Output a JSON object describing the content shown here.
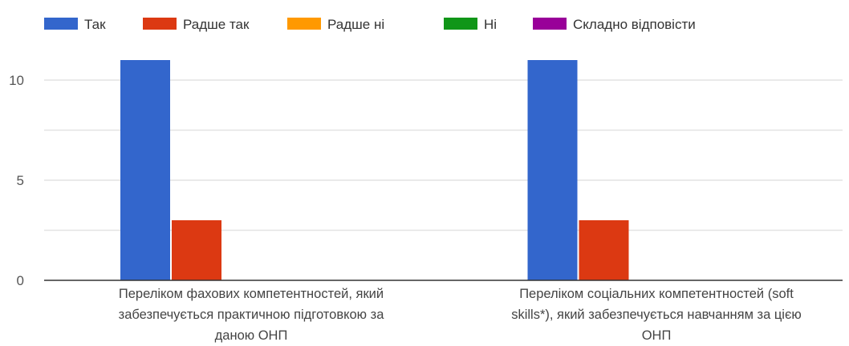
{
  "chart_data": {
    "type": "bar",
    "categories": [
      [
        "Переліком фахових компетентностей, який",
        "забезпечується практичною підготовкою за",
        "даною ОНП"
      ],
      [
        "Переліком соціальних компетентностей (soft",
        "skills*), який забезпечується навчанням за цією",
        "ОНП"
      ]
    ],
    "series": [
      {
        "name": "Так",
        "color": "#3366cc",
        "values": [
          11,
          11
        ]
      },
      {
        "name": "Радше так",
        "color": "#dc3912",
        "values": [
          3,
          3
        ]
      },
      {
        "name": "Радше ні",
        "color": "#ff9900",
        "values": [
          0,
          0
        ]
      },
      {
        "name": "Ні",
        "color": "#109618",
        "values": [
          0,
          0
        ]
      },
      {
        "name": "Складно відповісти",
        "color": "#990099",
        "values": [
          0,
          0
        ]
      }
    ],
    "yticks": [
      0,
      5,
      10
    ],
    "ylim": [
      0,
      12
    ],
    "grid": true,
    "legend_position": "top"
  }
}
